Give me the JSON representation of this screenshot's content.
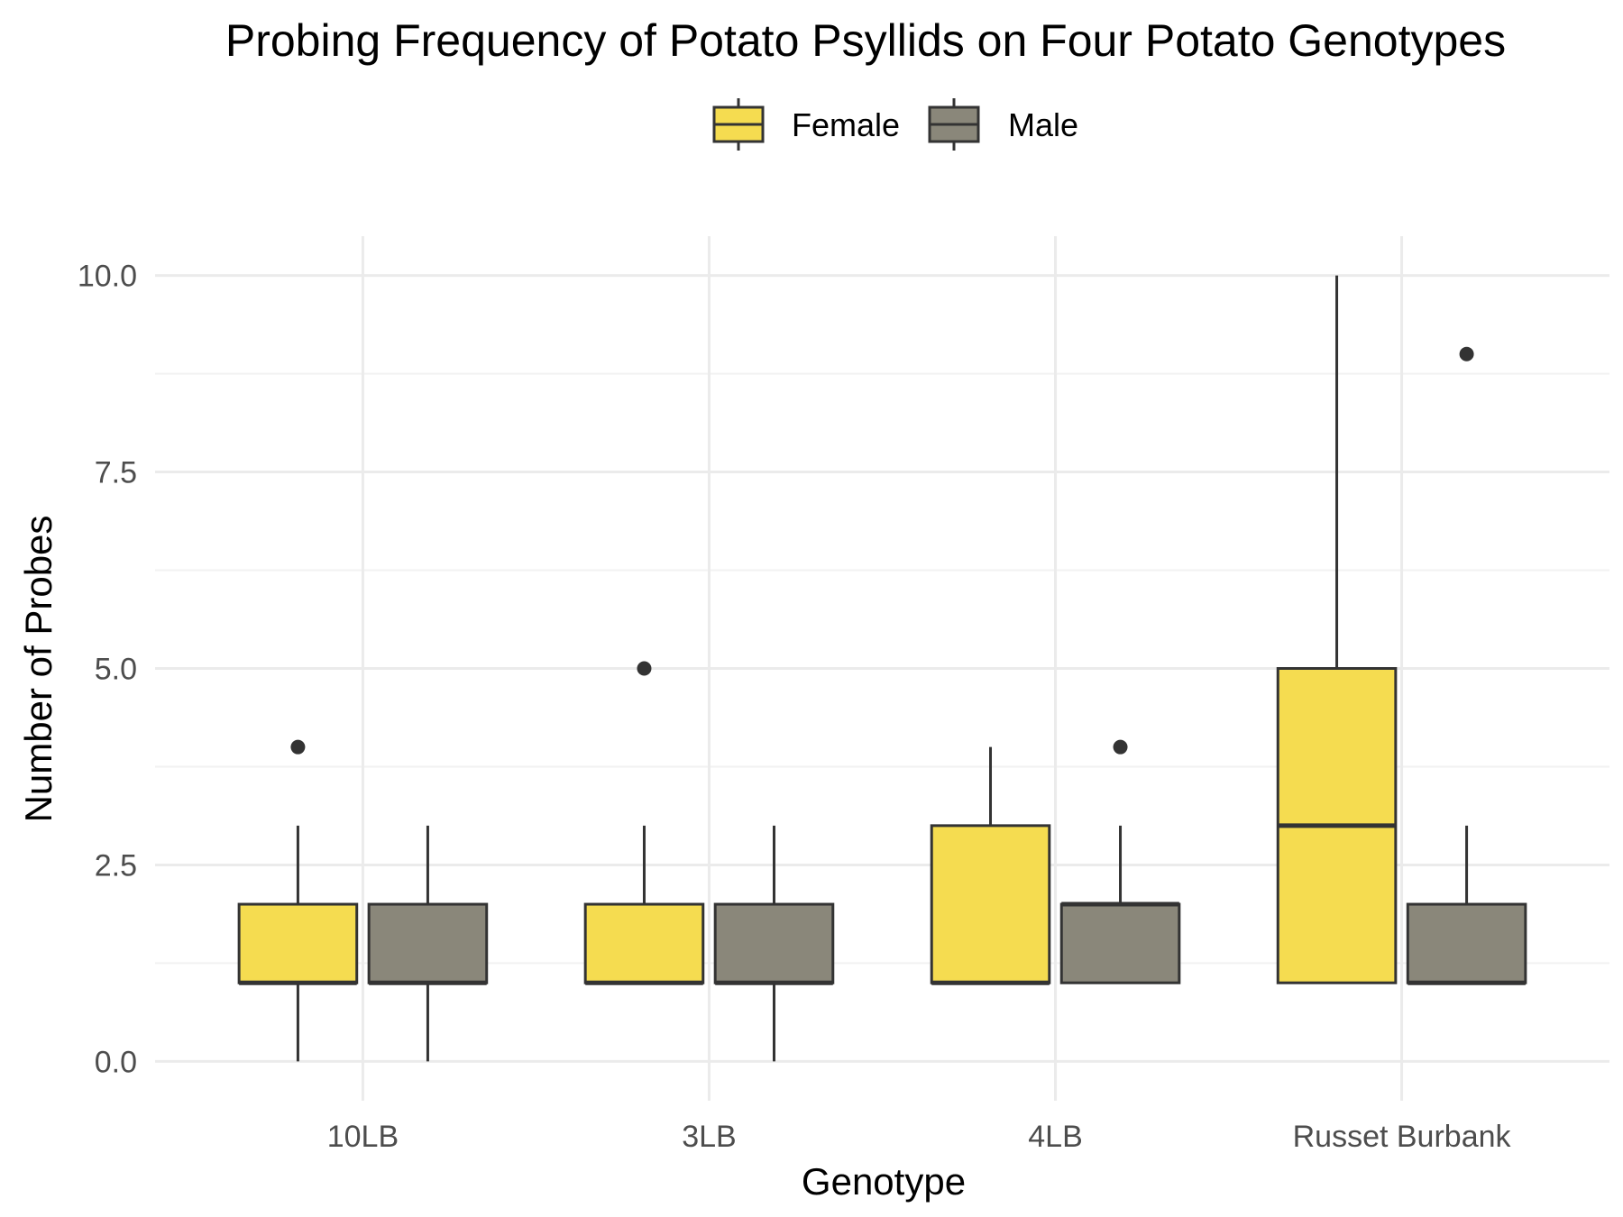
{
  "chart_data": {
    "type": "boxplot",
    "title": "Probing Frequency of Potato Psyllids on Four Potato Genotypes",
    "xlabel": "Genotype",
    "ylabel": "Number of Probes",
    "categories": [
      "10LB",
      "3LB",
      "4LB",
      "Russet Burbank"
    ],
    "ylim": [
      -0.5,
      10.5
    ],
    "y_ticks": [
      0.0,
      2.5,
      5.0,
      7.5,
      10.0
    ],
    "y_tick_labels": [
      "0.0",
      "2.5",
      "5.0",
      "7.5",
      "10.0"
    ],
    "y_minor_ticks": [
      1.25,
      3.75,
      6.25,
      8.75
    ],
    "grid": true,
    "legend": {
      "position": "top"
    },
    "series": [
      {
        "name": "Female",
        "color": "#F5DC50",
        "boxes": [
          {
            "category": "10LB",
            "min": 0,
            "q1": 1,
            "median": 1,
            "q3": 2,
            "max": 3,
            "outliers": [
              4
            ]
          },
          {
            "category": "3LB",
            "min": 1,
            "q1": 1,
            "median": 1,
            "q3": 2,
            "max": 3,
            "outliers": [
              5
            ]
          },
          {
            "category": "4LB",
            "min": 1,
            "q1": 1,
            "median": 1,
            "q3": 3,
            "max": 4,
            "outliers": []
          },
          {
            "category": "Russet Burbank",
            "min": 1,
            "q1": 1,
            "median": 3,
            "q3": 5,
            "max": 10,
            "outliers": []
          }
        ]
      },
      {
        "name": "Male",
        "color": "#8A877A",
        "boxes": [
          {
            "category": "10LB",
            "min": 0,
            "q1": 1,
            "median": 1,
            "q3": 2,
            "max": 3,
            "outliers": []
          },
          {
            "category": "3LB",
            "min": 0,
            "q1": 1,
            "median": 1,
            "q3": 2,
            "max": 3,
            "outliers": []
          },
          {
            "category": "4LB",
            "min": 1,
            "q1": 1,
            "median": 2,
            "q3": 2,
            "max": 3,
            "outliers": [
              4
            ]
          },
          {
            "category": "Russet Burbank",
            "min": 1,
            "q1": 1,
            "median": 1,
            "q3": 2,
            "max": 3,
            "outliers": [
              9
            ]
          }
        ]
      }
    ]
  }
}
